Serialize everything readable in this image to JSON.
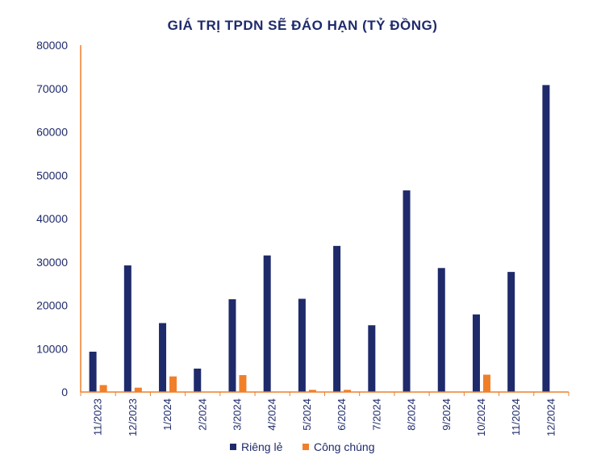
{
  "chart_data": {
    "type": "bar",
    "title": "GIÁ TRỊ TPDN SẼ ĐÁO HẠN (TỶ ĐỒNG)",
    "xlabel": "",
    "ylabel": "",
    "ylim": [
      0,
      80000
    ],
    "yticks": [
      0,
      10000,
      20000,
      30000,
      40000,
      50000,
      60000,
      70000,
      80000
    ],
    "grid": false,
    "legend_position": "bottom",
    "categories": [
      "11/2023",
      "12/2023",
      "1/2024",
      "2/2024",
      "3/2024",
      "4/2024",
      "5/2024",
      "6/2024",
      "7/2024",
      "8/2024",
      "9/2024",
      "10/2024",
      "11/2024",
      "12/2024"
    ],
    "series": [
      {
        "name": "Riêng lẻ",
        "color": "#1f2a6b",
        "values": [
          9300,
          29200,
          15900,
          5400,
          21400,
          31500,
          21500,
          33700,
          15400,
          46500,
          28600,
          17900,
          27700,
          70800
        ]
      },
      {
        "name": "Công chúng",
        "color": "#f07f2a",
        "values": [
          1600,
          1000,
          3600,
          0,
          3900,
          0,
          500,
          500,
          0,
          0,
          0,
          4000,
          0,
          0
        ]
      }
    ],
    "axis_color": "#f07f2a"
  }
}
